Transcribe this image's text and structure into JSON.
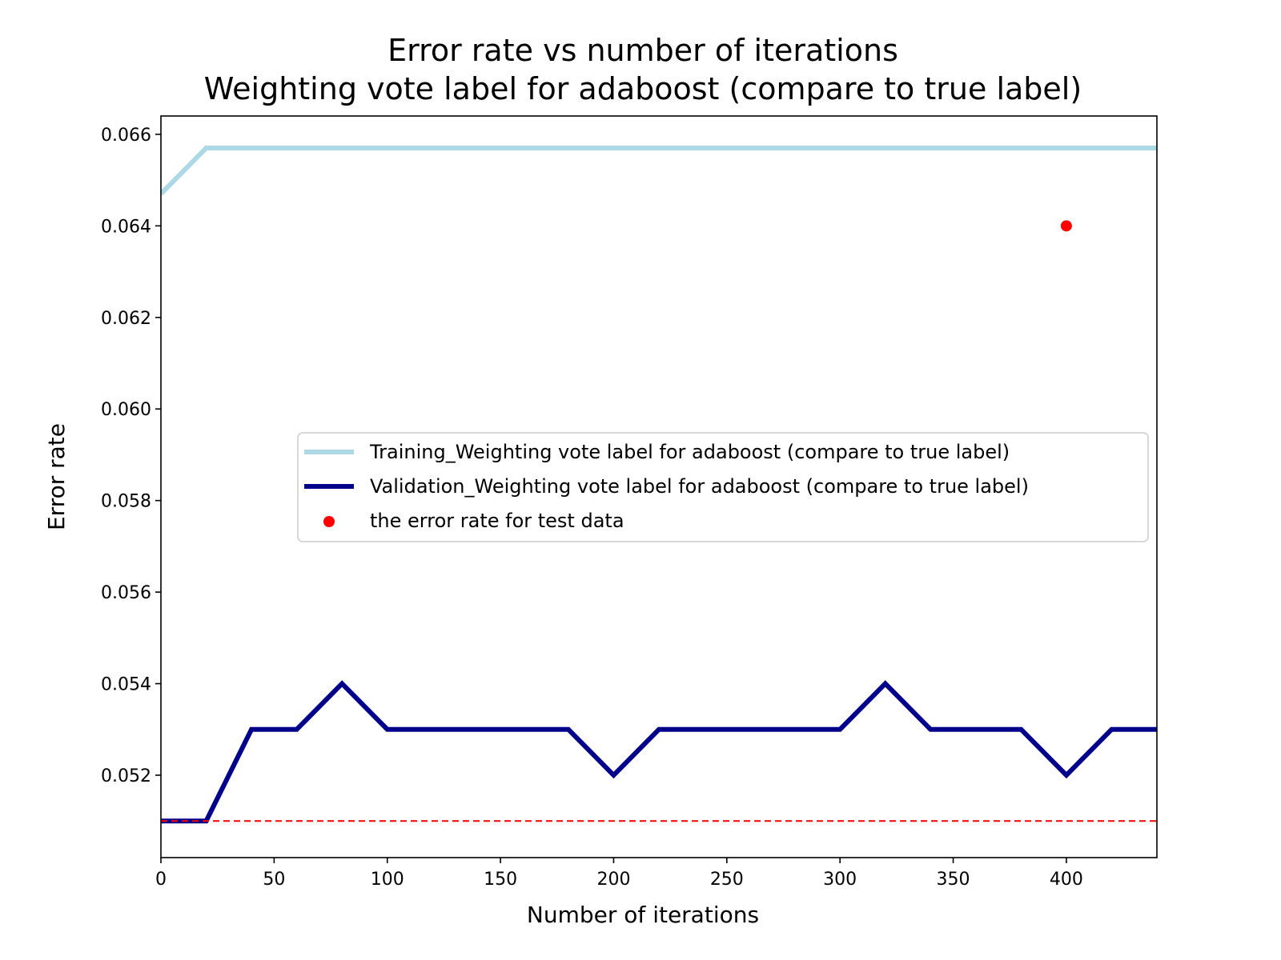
{
  "chart_data": {
    "type": "line",
    "title": "Error rate vs number of iterations",
    "subtitle": "Weighting vote label for adaboost (compare to true label)",
    "xlabel": "Number of iterations",
    "ylabel": "Error rate",
    "xlim": [
      0,
      440
    ],
    "ylim": [
      0.0502,
      0.0664
    ],
    "xticks": [
      0,
      50,
      100,
      150,
      200,
      250,
      300,
      350,
      400
    ],
    "xtick_labels": [
      "0",
      "50",
      "100",
      "150",
      "200",
      "250",
      "300",
      "350",
      "400"
    ],
    "yticks": [
      0.052,
      0.054,
      0.056,
      0.058,
      0.06,
      0.062,
      0.064,
      0.066
    ],
    "ytick_labels": [
      "0.052",
      "0.054",
      "0.056",
      "0.058",
      "0.060",
      "0.062",
      "0.064",
      "0.066"
    ],
    "grid": false,
    "legend_position": "center-right",
    "series": [
      {
        "name": "Training_Weighting vote label for adaboost (compare to true label)",
        "kind": "line",
        "color": "#add8e6",
        "x": [
          0,
          20,
          40,
          60,
          80,
          100,
          120,
          140,
          160,
          180,
          200,
          220,
          240,
          260,
          280,
          300,
          320,
          340,
          360,
          380,
          400,
          420,
          440
        ],
        "y": [
          0.0647,
          0.0657,
          0.0657,
          0.0657,
          0.0657,
          0.0657,
          0.0657,
          0.0657,
          0.0657,
          0.0657,
          0.0657,
          0.0657,
          0.0657,
          0.0657,
          0.0657,
          0.0657,
          0.0657,
          0.0657,
          0.0657,
          0.0657,
          0.0657,
          0.0657,
          0.0657
        ]
      },
      {
        "name": "Validation_Weighting vote label for adaboost (compare to true label)",
        "kind": "line",
        "color": "#00008b",
        "x": [
          0,
          20,
          40,
          60,
          80,
          100,
          120,
          140,
          160,
          180,
          200,
          220,
          240,
          260,
          280,
          300,
          320,
          340,
          360,
          380,
          400,
          420,
          440
        ],
        "y": [
          0.051,
          0.051,
          0.053,
          0.053,
          0.054,
          0.053,
          0.053,
          0.053,
          0.053,
          0.053,
          0.052,
          0.053,
          0.053,
          0.053,
          0.053,
          0.053,
          0.054,
          0.053,
          0.053,
          0.053,
          0.052,
          0.053,
          0.053
        ]
      },
      {
        "name": "the error rate for test data",
        "kind": "scatter",
        "color": "#ff0000",
        "x": [
          400
        ],
        "y": [
          0.064
        ]
      }
    ],
    "reference_lines": [
      {
        "orientation": "horizontal",
        "y": 0.051,
        "style": "dashed",
        "color": "#ff0000"
      }
    ]
  }
}
